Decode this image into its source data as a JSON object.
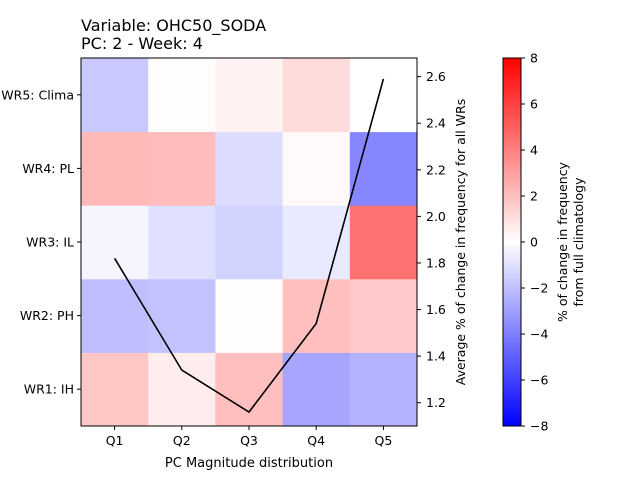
{
  "title_line1": "Variable: OHC50_SODA",
  "title_line2": "PC: 2 - Week: 4",
  "chart_data": [
    {
      "type": "heatmap",
      "x_categories": [
        "Q1",
        "Q2",
        "Q3",
        "Q4",
        "Q5"
      ],
      "y_categories": [
        "WR1: IH",
        "WR2: PH",
        "WR3: IL",
        "WR4: PL",
        "WR5: Clima"
      ],
      "xlabel": "PC Magnitude distribution",
      "values": [
        [
          1.8,
          0.6,
          2.0,
          -2.8,
          -2.4
        ],
        [
          -2.0,
          -1.9,
          0.1,
          2.0,
          1.7
        ],
        [
          -0.3,
          -1.0,
          -1.4,
          -0.7,
          4.5
        ],
        [
          2.2,
          2.1,
          -1.1,
          0.2,
          -3.8
        ],
        [
          -1.7,
          0.1,
          0.4,
          1.1,
          0.0
        ]
      ],
      "colorbar": {
        "label_line1": "% of change in frequency",
        "label_line2": "from full climatology",
        "range": [
          -8,
          8
        ],
        "ticks": [
          8,
          6,
          4,
          2,
          0,
          -2,
          -4,
          -6,
          -8
        ],
        "colormap": "bwr"
      }
    },
    {
      "type": "line",
      "x": [
        "Q1",
        "Q2",
        "Q3",
        "Q4",
        "Q5"
      ],
      "y": [
        1.82,
        1.34,
        1.16,
        1.54,
        2.59
      ],
      "ylabel": "Average % of change in frequency for all WRs",
      "ylim": [
        1.1,
        2.68
      ],
      "yticks": [
        1.2,
        1.4,
        1.6,
        1.8,
        2.0,
        2.2,
        2.4,
        2.6
      ],
      "color": "#000000"
    }
  ]
}
